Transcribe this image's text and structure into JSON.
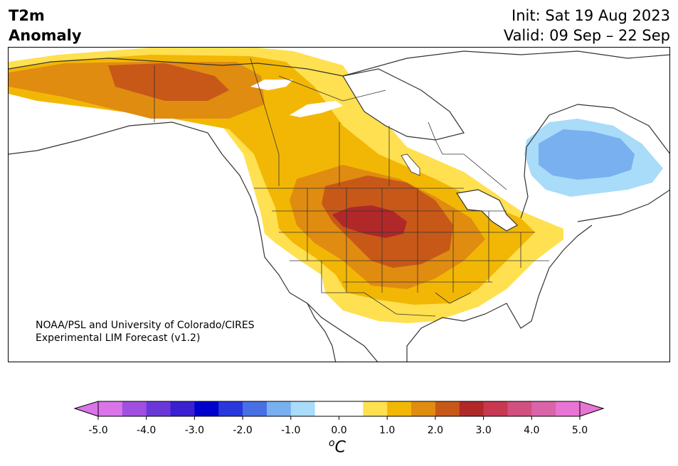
{
  "title": {
    "line1": "T2m",
    "line2": "Anomaly"
  },
  "dates": {
    "init": "Init: Sat 19 Aug 2023",
    "valid": "Valid: 09 Sep – 22 Sep"
  },
  "credit": {
    "line1": "NOAA/PSL and University of Colorado/CIRES",
    "line2": "Experimental LIM Forecast (v1.2)"
  },
  "colorbar": {
    "ticks": [
      "-5.0",
      "-4.0",
      "-3.0",
      "-2.0",
      "-1.0",
      "0.0",
      "1.0",
      "2.0",
      "3.0",
      "4.0",
      "5.0"
    ],
    "unit_symbol": "o",
    "unit_letter": "C",
    "colors": [
      "#da74e8",
      "#a050e0",
      "#6a38d8",
      "#3a20d0",
      "#0000cc",
      "#2838dc",
      "#4870e4",
      "#78b0f0",
      "#a8dcf8",
      "#ffffff",
      "#ffffff",
      "#ffe050",
      "#f2b705",
      "#e08c10",
      "#c85818",
      "#b02828",
      "#c83850",
      "#d05080",
      "#da64a8",
      "#e874d4"
    ],
    "extend_low_color": "#da74e8",
    "extend_high_color": "#e874d4"
  },
  "map_colors": {
    "anom_0_5": "#ffe050",
    "anom_1_0": "#f2b705",
    "anom_1_5": "#e08c10",
    "anom_2_0": "#c85818",
    "anom_2_5": "#b02828",
    "neg_0_5": "#a8dcf8",
    "neg_1_0": "#78b0f0",
    "neg_1_5": "#68a0ec"
  }
}
